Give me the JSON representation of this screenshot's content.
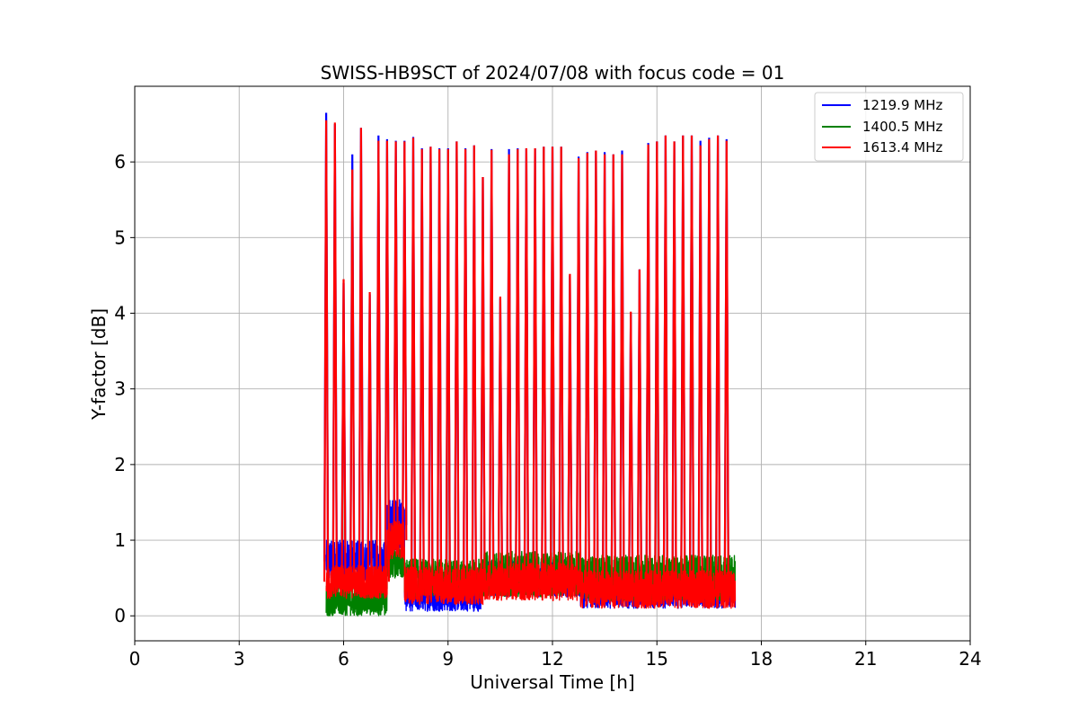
{
  "chart_data": {
    "type": "line",
    "title": "SWISS-HB9SCT of 2024/07/08 with focus code = 01",
    "xlabel": "Universal Time [h]",
    "ylabel": "Y-factor [dB]",
    "xlim": [
      0,
      24
    ],
    "ylim": [
      -0.33,
      7.0
    ],
    "xticks": [
      0,
      3,
      6,
      9,
      12,
      15,
      18,
      21,
      24
    ],
    "xtick_labels": [
      "0",
      "3",
      "6",
      "9",
      "12",
      "15",
      "18",
      "21",
      "24"
    ],
    "yticks": [
      0,
      1,
      2,
      3,
      4,
      5,
      6
    ],
    "ytick_labels": [
      "0",
      "1",
      "2",
      "3",
      "4",
      "5",
      "6"
    ],
    "grid": true,
    "legend_position": "top-right",
    "series": [
      {
        "name": "1219.9 MHz",
        "color": "#0000ff",
        "segments": [
          {
            "x_start": 5.5,
            "x_end": 7.25,
            "baseline": 0.72,
            "noise": 0.28
          },
          {
            "x_start": 7.25,
            "x_end": 7.75,
            "baseline": 1.2,
            "noise": 0.35
          },
          {
            "x_start": 7.75,
            "x_end": 10.0,
            "baseline": 0.28,
            "noise": 0.22
          },
          {
            "x_start": 10.0,
            "x_end": 12.8,
            "baseline": 0.5,
            "noise": 0.25
          },
          {
            "x_start": 12.8,
            "x_end": 17.25,
            "baseline": 0.35,
            "noise": 0.25
          }
        ],
        "peaks": [
          {
            "x": 5.5,
            "y": 6.65
          },
          {
            "x": 5.75,
            "y": 6.5
          },
          {
            "x": 6.0,
            "y": 4.4
          },
          {
            "x": 6.25,
            "y": 6.1
          },
          {
            "x": 6.5,
            "y": 6.45
          },
          {
            "x": 6.75,
            "y": 4.25
          },
          {
            "x": 7.0,
            "y": 6.35
          },
          {
            "x": 7.25,
            "y": 6.3
          },
          {
            "x": 7.5,
            "y": 6.28
          },
          {
            "x": 7.75,
            "y": 6.28
          },
          {
            "x": 8.0,
            "y": 6.33
          },
          {
            "x": 8.25,
            "y": 6.18
          },
          {
            "x": 8.5,
            "y": 6.2
          },
          {
            "x": 8.75,
            "y": 6.18
          },
          {
            "x": 9.0,
            "y": 6.18
          },
          {
            "x": 9.25,
            "y": 6.27
          },
          {
            "x": 9.5,
            "y": 6.18
          },
          {
            "x": 9.75,
            "y": 6.22
          },
          {
            "x": 10.0,
            "y": 5.8
          },
          {
            "x": 10.25,
            "y": 6.17
          },
          {
            "x": 10.5,
            "y": 4.2
          },
          {
            "x": 10.75,
            "y": 6.17
          },
          {
            "x": 11.0,
            "y": 6.18
          },
          {
            "x": 11.25,
            "y": 6.18
          },
          {
            "x": 11.5,
            "y": 6.18
          },
          {
            "x": 11.75,
            "y": 6.2
          },
          {
            "x": 12.0,
            "y": 6.2
          },
          {
            "x": 12.25,
            "y": 6.2
          },
          {
            "x": 12.5,
            "y": 4.5
          },
          {
            "x": 12.75,
            "y": 6.07
          },
          {
            "x": 13.0,
            "y": 6.13
          },
          {
            "x": 13.25,
            "y": 6.15
          },
          {
            "x": 13.5,
            "y": 6.13
          },
          {
            "x": 13.75,
            "y": 6.1
          },
          {
            "x": 14.0,
            "y": 6.15
          },
          {
            "x": 14.25,
            "y": 4.0
          },
          {
            "x": 14.5,
            "y": 4.58
          },
          {
            "x": 14.75,
            "y": 6.25
          },
          {
            "x": 15.0,
            "y": 6.27
          },
          {
            "x": 15.25,
            "y": 6.35
          },
          {
            "x": 15.5,
            "y": 6.27
          },
          {
            "x": 15.75,
            "y": 6.35
          },
          {
            "x": 16.0,
            "y": 6.35
          },
          {
            "x": 16.25,
            "y": 6.28
          },
          {
            "x": 16.5,
            "y": 6.32
          },
          {
            "x": 16.75,
            "y": 6.35
          },
          {
            "x": 17.0,
            "y": 6.3
          }
        ]
      },
      {
        "name": "1400.5 MHz",
        "color": "#008000",
        "segments": [
          {
            "x_start": 5.5,
            "x_end": 7.25,
            "baseline": 0.2,
            "noise": 0.2
          },
          {
            "x_start": 7.25,
            "x_end": 7.75,
            "baseline": 0.7,
            "noise": 0.2
          },
          {
            "x_start": 7.75,
            "x_end": 10.0,
            "baseline": 0.5,
            "noise": 0.25
          },
          {
            "x_start": 10.0,
            "x_end": 12.8,
            "baseline": 0.55,
            "noise": 0.3
          },
          {
            "x_start": 12.8,
            "x_end": 17.25,
            "baseline": 0.5,
            "noise": 0.3
          }
        ]
      },
      {
        "name": "1613.4 MHz",
        "color": "#ff0000",
        "segments": [
          {
            "x_start": 5.5,
            "x_end": 7.25,
            "baseline": 0.45,
            "noise": 0.22
          },
          {
            "x_start": 7.25,
            "x_end": 7.75,
            "baseline": 1.0,
            "noise": 0.25
          },
          {
            "x_start": 7.75,
            "x_end": 10.0,
            "baseline": 0.4,
            "noise": 0.25
          },
          {
            "x_start": 10.0,
            "x_end": 12.8,
            "baseline": 0.45,
            "noise": 0.25
          },
          {
            "x_start": 12.8,
            "x_end": 17.25,
            "baseline": 0.35,
            "noise": 0.25
          }
        ],
        "peaks": [
          {
            "x": 5.5,
            "y": 6.55
          },
          {
            "x": 5.75,
            "y": 6.52
          },
          {
            "x": 6.0,
            "y": 4.45
          },
          {
            "x": 6.25,
            "y": 5.9
          },
          {
            "x": 6.5,
            "y": 6.45
          },
          {
            "x": 6.75,
            "y": 4.28
          },
          {
            "x": 7.0,
            "y": 6.28
          },
          {
            "x": 7.25,
            "y": 6.28
          },
          {
            "x": 7.5,
            "y": 6.27
          },
          {
            "x": 7.75,
            "y": 6.27
          },
          {
            "x": 8.0,
            "y": 6.32
          },
          {
            "x": 8.25,
            "y": 6.17
          },
          {
            "x": 8.5,
            "y": 6.2
          },
          {
            "x": 8.75,
            "y": 6.17
          },
          {
            "x": 9.0,
            "y": 6.17
          },
          {
            "x": 9.25,
            "y": 6.27
          },
          {
            "x": 9.5,
            "y": 6.17
          },
          {
            "x": 9.75,
            "y": 6.22
          },
          {
            "x": 10.0,
            "y": 5.8
          },
          {
            "x": 10.25,
            "y": 6.16
          },
          {
            "x": 10.5,
            "y": 4.22
          },
          {
            "x": 10.75,
            "y": 6.1
          },
          {
            "x": 11.0,
            "y": 6.17
          },
          {
            "x": 11.25,
            "y": 6.18
          },
          {
            "x": 11.5,
            "y": 6.18
          },
          {
            "x": 11.75,
            "y": 6.2
          },
          {
            "x": 12.0,
            "y": 6.2
          },
          {
            "x": 12.25,
            "y": 6.2
          },
          {
            "x": 12.5,
            "y": 4.52
          },
          {
            "x": 12.75,
            "y": 6.05
          },
          {
            "x": 13.0,
            "y": 6.12
          },
          {
            "x": 13.25,
            "y": 6.15
          },
          {
            "x": 13.5,
            "y": 6.1
          },
          {
            "x": 13.75,
            "y": 6.1
          },
          {
            "x": 14.0,
            "y": 6.1
          },
          {
            "x": 14.25,
            "y": 4.02
          },
          {
            "x": 14.5,
            "y": 4.58
          },
          {
            "x": 14.75,
            "y": 6.23
          },
          {
            "x": 15.0,
            "y": 6.27
          },
          {
            "x": 15.25,
            "y": 6.35
          },
          {
            "x": 15.5,
            "y": 6.27
          },
          {
            "x": 15.75,
            "y": 6.35
          },
          {
            "x": 16.0,
            "y": 6.35
          },
          {
            "x": 16.25,
            "y": 6.22
          },
          {
            "x": 16.5,
            "y": 6.3
          },
          {
            "x": 16.75,
            "y": 6.35
          },
          {
            "x": 17.0,
            "y": 6.28
          }
        ]
      }
    ]
  }
}
